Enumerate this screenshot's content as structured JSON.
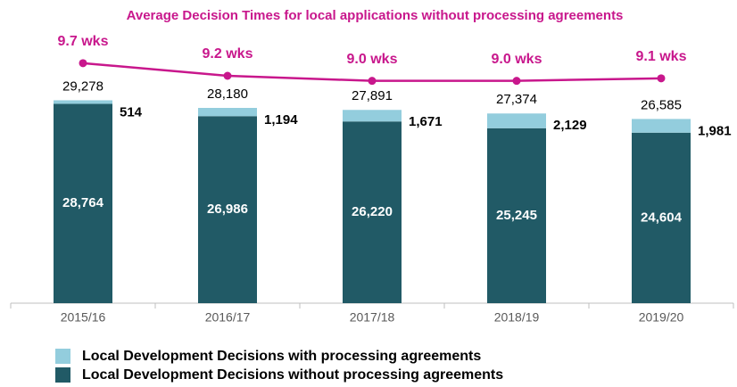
{
  "chart_data": {
    "type": "stacked_bar_line",
    "title": "Average Decision Times for local applications without processing agreements",
    "categories": [
      "2015/16",
      "2016/17",
      "2017/18",
      "2018/19",
      "2019/20"
    ],
    "ylim": [
      0,
      35000
    ],
    "y2lim": [
      0.2,
      9.8
    ],
    "series": [
      {
        "name": "Local Development Decisions without processing agreements",
        "color": "#215a66",
        "values": [
          28764,
          26986,
          26220,
          25245,
          24604
        ],
        "value_labels": [
          "28,764",
          "26,986",
          "26,220",
          "25,245",
          "24,604"
        ]
      },
      {
        "name": "Local Development Decisions with  processing agreements",
        "color": "#93cddd",
        "values": [
          514,
          1194,
          1671,
          2129,
          1981
        ],
        "value_labels": [
          "514",
          "1,194",
          "1,671",
          "2,129",
          "1,981"
        ]
      },
      {
        "type": "line",
        "axis": "y2",
        "color": "#c8178c",
        "values": [
          9.7,
          9.2,
          9.0,
          9.0,
          9.1
        ],
        "value_labels": [
          "9.7 wks",
          "9.2 wks",
          "9.0 wks",
          "9.0 wks",
          "9.1 wks"
        ]
      }
    ],
    "totals": {
      "values": [
        29278,
        28180,
        27891,
        27374,
        26585
      ],
      "value_labels": [
        "29,278",
        "28,180",
        "27,891",
        "27,374",
        "26,585"
      ]
    }
  }
}
